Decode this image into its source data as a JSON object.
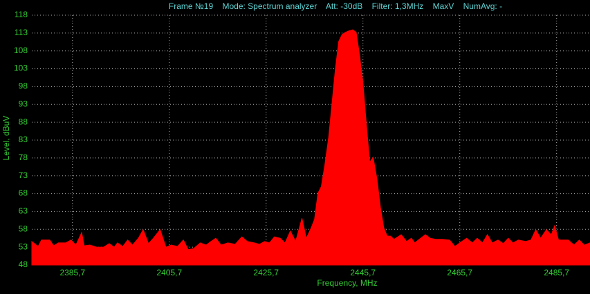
{
  "chart_data": {
    "type": "area",
    "title": "Frame №19    Mode: Spectrum analyzer    Att: -30dB    Filter: 1,3MHz    MaxV    NumAvg: -",
    "x_label": "Frequency, MHz",
    "y_label": "Level, dBuV",
    "color": "#ff0000",
    "grid": true,
    "xlim": [
      2377.3,
      2492.6
    ],
    "ylim": [
      48,
      118
    ],
    "xticks": [
      {
        "value": 2385.7,
        "label": "2385,7"
      },
      {
        "value": 2405.7,
        "label": "2405,7"
      },
      {
        "value": 2425.7,
        "label": "2425,7"
      },
      {
        "value": 2445.7,
        "label": "2445,7"
      },
      {
        "value": 2465.7,
        "label": "2465,7"
      },
      {
        "value": 2485.7,
        "label": "2485,7"
      }
    ],
    "yticks": [
      48,
      53,
      58,
      63,
      68,
      73,
      78,
      83,
      88,
      93,
      98,
      103,
      108,
      113,
      118
    ],
    "x": [
      2377.3,
      2378.6,
      2379.3,
      2381.0,
      2381.8,
      2382.8,
      2384.3,
      2385.4,
      2386.4,
      2387.6,
      2388.1,
      2389.3,
      2390.7,
      2392.1,
      2393.3,
      2394.3,
      2395.0,
      2396.1,
      2397.1,
      2398.1,
      2399.3,
      2400.3,
      2401.4,
      2402.4,
      2403.8,
      2405.0,
      2406.1,
      2407.4,
      2408.6,
      2409.6,
      2410.7,
      2412.1,
      2413.3,
      2414.3,
      2415.3,
      2416.4,
      2417.8,
      2419.3,
      2420.7,
      2421.8,
      2423.3,
      2424.3,
      2425.4,
      2426.4,
      2427.4,
      2428.6,
      2429.6,
      2430.7,
      2431.8,
      2433.1,
      2434.0,
      2435.0,
      2435.7,
      2436.4,
      2437.1,
      2437.8,
      2438.6,
      2439.3,
      2440.0,
      2440.7,
      2441.4,
      2442.1,
      2442.8,
      2443.6,
      2444.3,
      2445.0,
      2445.7,
      2446.4,
      2447.1,
      2447.8,
      2448.6,
      2449.3,
      2450.0,
      2450.7,
      2451.4,
      2452.1,
      2453.6,
      2454.7,
      2455.7,
      2456.4,
      2457.6,
      2458.6,
      2459.6,
      2460.7,
      2462.1,
      2463.6,
      2464.7,
      2465.7,
      2467.1,
      2468.3,
      2469.3,
      2470.4,
      2471.4,
      2472.4,
      2473.6,
      2474.7,
      2475.7,
      2476.7,
      2477.8,
      2479.3,
      2480.4,
      2481.4,
      2482.4,
      2483.6,
      2484.6,
      2485.3,
      2486.1,
      2487.1,
      2488.1,
      2489.3,
      2490.4,
      2491.4,
      2492.6
    ],
    "values": [
      54.6,
      53.2,
      55.0,
      55.0,
      53.4,
      54.2,
      54.2,
      55.0,
      53.6,
      57.1,
      53.4,
      53.6,
      53.0,
      53.0,
      54.0,
      53.0,
      54.2,
      53.2,
      55.0,
      53.6,
      55.5,
      57.9,
      54.0,
      55.5,
      57.9,
      53.0,
      53.6,
      53.2,
      55.0,
      52.3,
      52.6,
      54.2,
      53.6,
      54.6,
      55.5,
      53.6,
      54.2,
      53.8,
      55.9,
      54.6,
      54.2,
      53.8,
      54.6,
      54.2,
      55.9,
      55.5,
      54.2,
      57.5,
      54.6,
      61.1,
      55.5,
      58.4,
      60.8,
      68.1,
      70.0,
      75.8,
      83.6,
      93.2,
      102.9,
      110.7,
      112.6,
      113.2,
      113.6,
      113.9,
      113.2,
      106.8,
      99.0,
      87.4,
      76.8,
      78.2,
      72.0,
      64.2,
      58.4,
      56.1,
      56.1,
      55.2,
      56.5,
      54.6,
      55.5,
      54.2,
      55.5,
      56.5,
      55.5,
      55.2,
      55.2,
      55.0,
      53.2,
      54.2,
      55.5,
      54.2,
      55.5,
      54.2,
      56.5,
      54.2,
      55.0,
      54.0,
      55.5,
      54.2,
      55.0,
      54.6,
      55.0,
      57.9,
      55.5,
      57.9,
      56.5,
      59.0,
      55.0,
      55.0,
      55.0,
      53.6,
      55.0,
      53.6,
      54.2
    ]
  }
}
